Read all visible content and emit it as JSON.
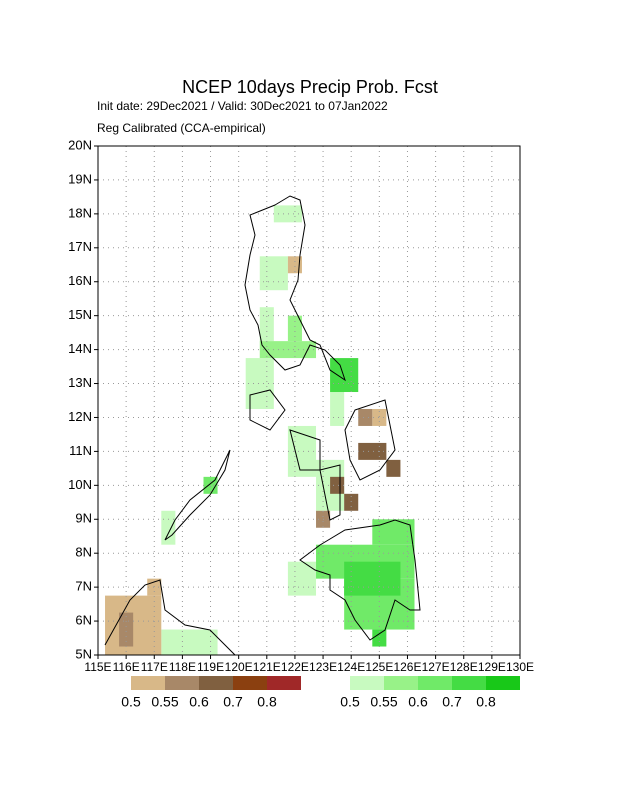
{
  "chart_data": {
    "type": "map",
    "title": "NCEP 10days Precip Prob. Fcst",
    "subtitle": "Init date: 29Dec2021 / Valid: 30Dec2021 to 07Jan2022",
    "note": "Reg Calibrated (CCA-empirical)",
    "xlim": [
      115,
      130
    ],
    "ylim": [
      5,
      20
    ],
    "xticks": [
      {
        "value": 115,
        "label": "115E"
      },
      {
        "value": 116,
        "label": "116E"
      },
      {
        "value": 117,
        "label": "117E"
      },
      {
        "value": 118,
        "label": "118E"
      },
      {
        "value": 119,
        "label": "119E"
      },
      {
        "value": 120,
        "label": "120E"
      },
      {
        "value": 121,
        "label": "121E"
      },
      {
        "value": 122,
        "label": "122E"
      },
      {
        "value": 123,
        "label": "123E"
      },
      {
        "value": 124,
        "label": "124E"
      },
      {
        "value": 125,
        "label": "125E"
      },
      {
        "value": 126,
        "label": "126E"
      },
      {
        "value": 127,
        "label": "127E"
      },
      {
        "value": 128,
        "label": "128E"
      },
      {
        "value": 129,
        "label": "129E"
      },
      {
        "value": 130,
        "label": "130E"
      }
    ],
    "yticks": [
      {
        "value": 5,
        "label": "5N"
      },
      {
        "value": 6,
        "label": "6N"
      },
      {
        "value": 7,
        "label": "7N"
      },
      {
        "value": 8,
        "label": "8N"
      },
      {
        "value": 9,
        "label": "9N"
      },
      {
        "value": 10,
        "label": "10N"
      },
      {
        "value": 11,
        "label": "11N"
      },
      {
        "value": 12,
        "label": "12N"
      },
      {
        "value": 13,
        "label": "13N"
      },
      {
        "value": 14,
        "label": "14N"
      },
      {
        "value": 15,
        "label": "15N"
      },
      {
        "value": 16,
        "label": "16N"
      },
      {
        "value": 17,
        "label": "17N"
      },
      {
        "value": 18,
        "label": "18N"
      },
      {
        "value": 19,
        "label": "19N"
      },
      {
        "value": 20,
        "label": "20N"
      }
    ],
    "grid": true,
    "legend_dry": {
      "values": [
        0.5,
        0.55,
        0.6,
        0.7,
        0.8
      ],
      "colors": [
        "#d8b888",
        "#a88868",
        "#806040",
        "#8b4010",
        "#a02828"
      ]
    },
    "legend_wet": {
      "values": [
        0.5,
        0.55,
        0.6,
        0.7,
        0.8
      ],
      "colors": [
        "#c8fac0",
        "#98f288",
        "#70ea68",
        "#44dc44",
        "#18c818"
      ]
    },
    "dry": [
      [
        115.25,
        5.0,
        117.25,
        6.75,
        0.5
      ],
      [
        116.75,
        6.75,
        117.25,
        7.25,
        0.5
      ],
      [
        121.75,
        16.25,
        122.25,
        16.75,
        0.5
      ],
      [
        124.75,
        11.75,
        125.25,
        12.25,
        0.5
      ],
      [
        115.75,
        5.25,
        116.25,
        6.25,
        0.55
      ],
      [
        124.25,
        11.75,
        124.75,
        12.25,
        0.55
      ],
      [
        122.75,
        8.75,
        123.25,
        9.25,
        0.55
      ],
      [
        124.25,
        10.75,
        125.25,
        11.25,
        0.6
      ],
      [
        123.25,
        9.75,
        123.75,
        10.25,
        0.6
      ],
      [
        123.75,
        9.25,
        124.25,
        9.75,
        0.6
      ],
      [
        125.25,
        10.25,
        125.75,
        10.75,
        0.6
      ]
    ],
    "wet": [
      [
        121.25,
        17.75,
        122.25,
        18.25,
        0.5
      ],
      [
        120.75,
        15.75,
        121.75,
        16.75,
        0.5
      ],
      [
        120.75,
        14.25,
        121.25,
        15.25,
        0.5
      ],
      [
        120.25,
        12.25,
        121.25,
        13.75,
        0.5
      ],
      [
        121.75,
        10.25,
        122.75,
        11.75,
        0.5
      ],
      [
        122.75,
        9.25,
        123.75,
        10.75,
        0.5
      ],
      [
        121.75,
        6.75,
        122.75,
        7.75,
        0.5
      ],
      [
        117.25,
        8.25,
        117.75,
        9.25,
        0.5
      ],
      [
        117.25,
        5.0,
        119.25,
        5.75,
        0.5
      ],
      [
        123.25,
        11.75,
        123.75,
        13.25,
        0.5
      ],
      [
        120.75,
        13.75,
        122.75,
        14.25,
        0.55
      ],
      [
        121.75,
        14.25,
        122.25,
        15.0,
        0.55
      ],
      [
        122.75,
        7.25,
        126.25,
        8.25,
        0.6
      ],
      [
        123.75,
        5.75,
        126.25,
        7.25,
        0.6
      ],
      [
        124.75,
        8.25,
        126.25,
        9.0,
        0.6
      ],
      [
        118.75,
        9.75,
        119.25,
        10.25,
        0.6
      ],
      [
        123.25,
        12.75,
        124.25,
        13.75,
        0.7
      ],
      [
        123.75,
        6.75,
        125.75,
        7.75,
        0.7
      ],
      [
        124.75,
        5.25,
        125.25,
        5.75,
        0.7
      ]
    ]
  }
}
